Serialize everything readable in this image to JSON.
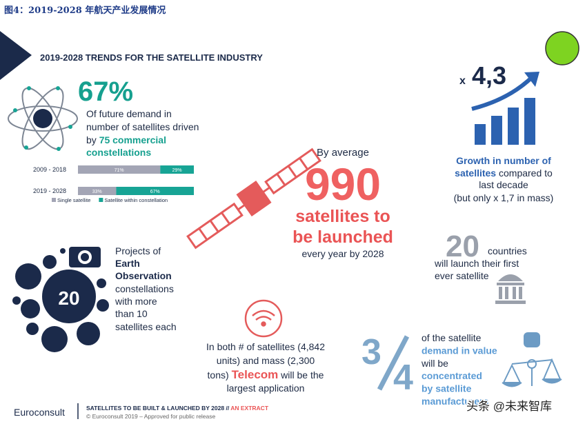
{
  "header": {
    "caption": "图4：2019-2028 年航天产业发展情况"
  },
  "title": "2019-2028 TRENDS FOR THE SATELLITE INDUSTRY",
  "constellations": {
    "headline": "67%",
    "lines": [
      "Of future demand in",
      "number of satellites driven"
    ],
    "by": "by",
    "highlight": [
      "75 commercial",
      "constellations"
    ],
    "chart": {
      "type": "bar",
      "orientation": "horizontal",
      "stacked": true,
      "categories": [
        "2009 - 2018",
        "2019 - 2028"
      ],
      "xlim": [
        0,
        100
      ],
      "series": [
        {
          "name": "Single satellite",
          "color": "#a3a5b5",
          "values": [
            71,
            33
          ],
          "value_labels": [
            "71%",
            "33%"
          ]
        },
        {
          "name": "Satellite within constellation",
          "color": "#17a495",
          "values": [
            29,
            67
          ],
          "value_labels": [
            "29%",
            "67%"
          ]
        }
      ]
    }
  },
  "launches": {
    "intro": "By average",
    "number": "990",
    "lines": [
      "satellites to",
      "be launched"
    ],
    "note": "every year by 2028"
  },
  "growth": {
    "factor_prefix": "x",
    "factor": "4,3",
    "line1": "Growth in number of",
    "line2_highlight": "satellites",
    "line2_rest": "compared to",
    "line3": "last decade",
    "line4": "(but only x 1,7 in mass)"
  },
  "countries": {
    "number": "20",
    "word": "countries",
    "lines": [
      "will launch their first",
      "ever satellite"
    ]
  },
  "earth_observation": {
    "number": "20",
    "lines": [
      "Projects of"
    ],
    "bold": [
      "Earth",
      "Observation"
    ],
    "rest": [
      "constellations",
      "with more",
      "than 10",
      "satellites each"
    ]
  },
  "telecom": {
    "lines": [
      "In both # of satellites (4,842",
      "units) and mass (2,300"
    ],
    "prefix": "tons)",
    "highlight": "Telecom",
    "suffix": "will be the",
    "last": "largest application"
  },
  "manufacturers": {
    "numerator": "3",
    "denominator": "4",
    "lines": [
      {
        "text": "of the satellite",
        "bold": false
      },
      {
        "text": "demand in value",
        "bold": true
      },
      {
        "text": "will be",
        "bold": false
      },
      {
        "text": "concentrated",
        "bold": true
      },
      {
        "text": "by satellite",
        "bold": true
      },
      {
        "text": "manufacturers",
        "bold": true
      }
    ]
  },
  "footer": {
    "brand": "Euroconsult",
    "tagline": "SATELLITES TO BE BUILT & LAUNCHED BY 2028 //",
    "tag": "AN EXTRACT",
    "copyright": "© Euroconsult 2019 – Approved for public release"
  },
  "watermark": "头条 @未来智库"
}
